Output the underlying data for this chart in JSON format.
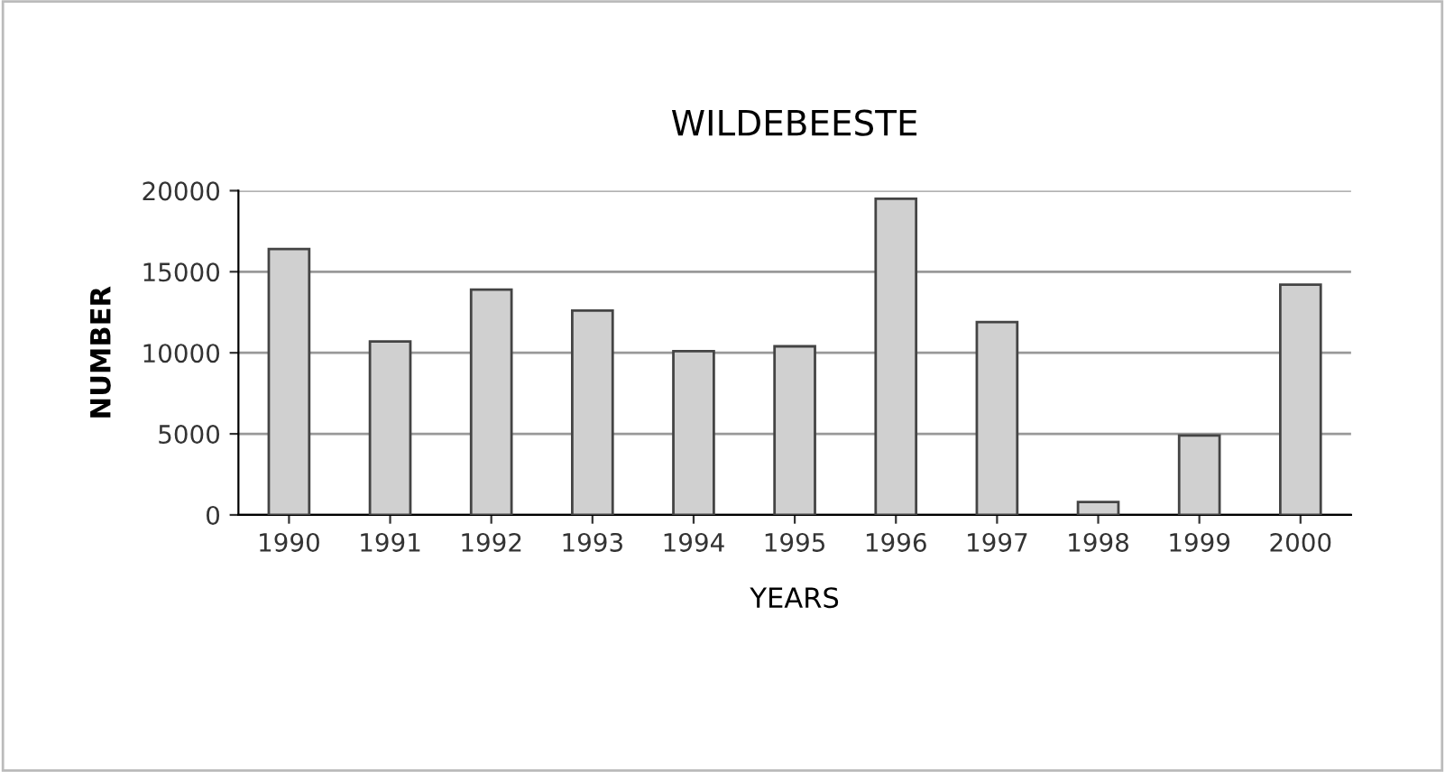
{
  "chart_data": {
    "type": "bar",
    "title": "WILDEBEESTE",
    "xlabel": "YEARS",
    "ylabel": "NUMBER",
    "categories": [
      "1990",
      "1991",
      "1992",
      "1993",
      "1994",
      "1995",
      "1996",
      "1997",
      "1998",
      "1999",
      "2000"
    ],
    "values": [
      16400,
      10700,
      13900,
      12600,
      10100,
      10400,
      19500,
      11900,
      800,
      4900,
      14200
    ],
    "color": "#d0d0d0",
    "ylim": [
      0,
      20000
    ],
    "yticks": [
      0,
      5000,
      10000,
      15000,
      20000
    ],
    "grid": "y"
  }
}
